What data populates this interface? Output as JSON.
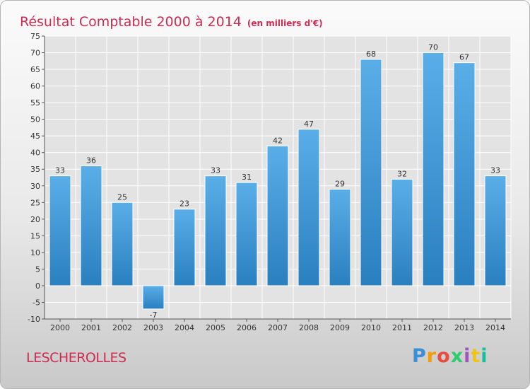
{
  "title": "Résultat Comptable 2000 à 2014",
  "subtitle": "(en milliers d'€)",
  "commune": "LESCHEROLLES",
  "brand": "Proxiti",
  "colors": {
    "accent": "#d02c52",
    "bar_top": "#5aaee8",
    "bar_bottom": "#2a7fbf",
    "grid": "#ffffff"
  },
  "chart_data": {
    "type": "bar",
    "title": "Résultat Comptable 2000 à 2014",
    "xlabel": "",
    "ylabel": "",
    "ylim": [
      -10,
      75
    ],
    "ytick_step": 5,
    "grid": true,
    "categories": [
      "2000",
      "2001",
      "2002",
      "2003",
      "2004",
      "2005",
      "2006",
      "2007",
      "2008",
      "2009",
      "2010",
      "2011",
      "2012",
      "2013",
      "2014"
    ],
    "values": [
      33,
      36,
      25,
      -7,
      23,
      33,
      31,
      42,
      47,
      29,
      68,
      32,
      70,
      67,
      33
    ]
  }
}
